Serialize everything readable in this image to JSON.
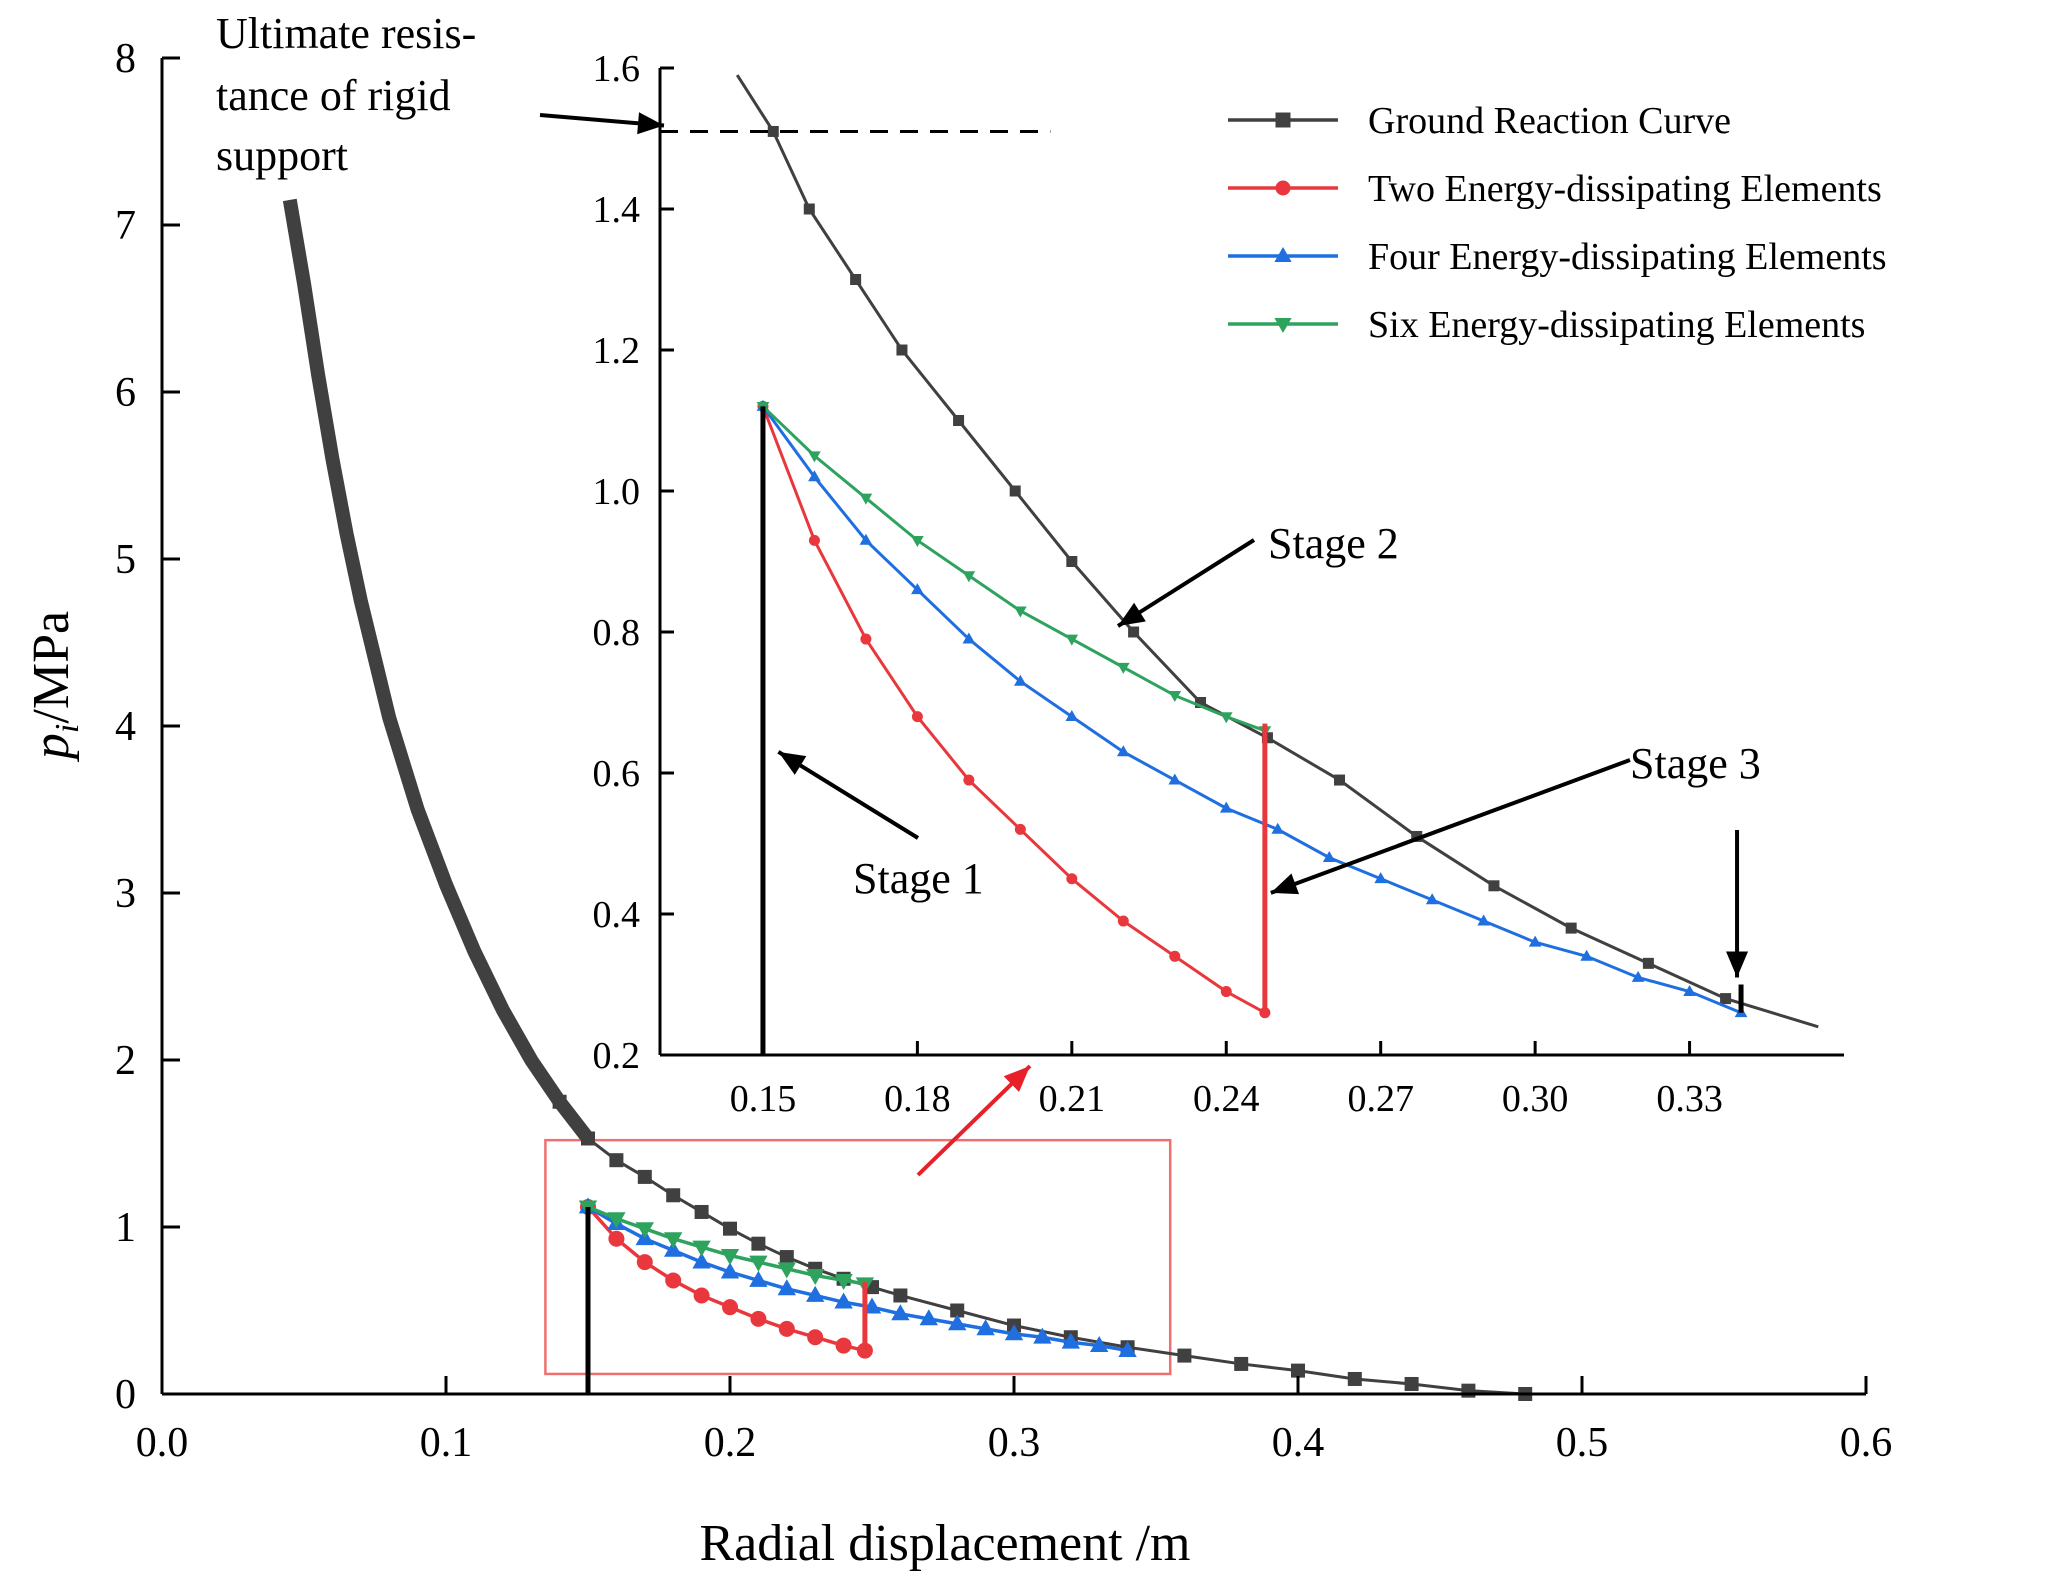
{
  "chart_data": [
    {
      "id": "main",
      "type": "line",
      "xlabel": "Radial displacement /m",
      "ylabel": "p",
      "ylabel_sub": "i",
      "ylabel_unit": "/MPa",
      "xlim": [
        0,
        0.6
      ],
      "ylim": [
        0,
        8
      ],
      "xticks": [
        "0.0",
        "0.1",
        "0.2",
        "0.3",
        "0.4",
        "0.5",
        "0.6"
      ],
      "yticks": [
        "0",
        "1",
        "2",
        "3",
        "4",
        "5",
        "6",
        "7",
        "8"
      ],
      "grid": false,
      "series": [
        {
          "name": "Ground Reaction Curve",
          "color": "#404040",
          "marker": "square",
          "x": [
            0.045,
            0.05,
            0.055,
            0.06,
            0.065,
            0.07,
            0.075,
            0.08,
            0.09,
            0.1,
            0.11,
            0.12,
            0.13,
            0.14,
            0.15,
            0.16,
            0.17,
            0.18,
            0.19,
            0.2,
            0.21,
            0.22,
            0.23,
            0.24,
            0.25,
            0.26,
            0.28,
            0.3,
            0.32,
            0.34,
            0.36,
            0.38,
            0.4,
            0.42,
            0.44,
            0.46,
            0.48
          ],
          "y": [
            7.15,
            6.65,
            6.1,
            5.6,
            5.15,
            4.75,
            4.4,
            4.05,
            3.5,
            3.05,
            2.65,
            2.3,
            2.0,
            1.75,
            1.53,
            1.4,
            1.3,
            1.19,
            1.09,
            0.99,
            0.9,
            0.82,
            0.75,
            0.69,
            0.64,
            0.59,
            0.5,
            0.41,
            0.34,
            0.28,
            0.23,
            0.18,
            0.14,
            0.09,
            0.06,
            0.02,
            0.0
          ]
        },
        {
          "name": "Two Energy-dissipating Elements",
          "color": "#e8383d",
          "marker": "circle",
          "x": [
            0.15,
            0.16,
            0.17,
            0.18,
            0.19,
            0.2,
            0.21,
            0.22,
            0.23,
            0.24,
            0.2475
          ],
          "y": [
            1.12,
            0.93,
            0.79,
            0.68,
            0.59,
            0.52,
            0.45,
            0.39,
            0.34,
            0.29,
            0.26
          ]
        },
        {
          "name": "Four Energy-dissipating Elements",
          "color": "#1f6fe0",
          "marker": "triangle-up",
          "x": [
            0.15,
            0.16,
            0.17,
            0.18,
            0.19,
            0.2,
            0.21,
            0.22,
            0.23,
            0.24,
            0.25,
            0.26,
            0.27,
            0.28,
            0.29,
            0.3,
            0.31,
            0.32,
            0.33,
            0.34
          ],
          "y": [
            1.12,
            1.02,
            0.93,
            0.86,
            0.79,
            0.73,
            0.68,
            0.63,
            0.59,
            0.55,
            0.52,
            0.48,
            0.45,
            0.42,
            0.39,
            0.36,
            0.34,
            0.31,
            0.29,
            0.26
          ]
        },
        {
          "name": "Six Energy-dissipating Elements",
          "color": "#2ea35e",
          "marker": "triangle-down",
          "x": [
            0.15,
            0.16,
            0.17,
            0.18,
            0.19,
            0.2,
            0.21,
            0.22,
            0.23,
            0.24,
            0.2475
          ],
          "y": [
            1.12,
            1.05,
            0.99,
            0.93,
            0.88,
            0.83,
            0.79,
            0.75,
            0.71,
            0.68,
            0.66
          ]
        }
      ],
      "segments": [
        {
          "name": "stage1-vertical",
          "color": "#000000",
          "x": [
            0.15,
            0.15
          ],
          "y": [
            0,
            1.12
          ]
        },
        {
          "name": "stage3-drop",
          "color": "#e8383d",
          "x": [
            0.2475,
            0.2475
          ],
          "y": [
            0.67,
            0.26
          ]
        }
      ],
      "zoom_box": {
        "x": [
          0.135,
          0.355
        ],
        "y": [
          0.12,
          1.52
        ],
        "color": "#f07070"
      }
    },
    {
      "id": "inset",
      "type": "line",
      "xlim": [
        0.13,
        0.36
      ],
      "ylim": [
        0.2,
        1.6
      ],
      "xticks": [
        "0.15",
        "0.18",
        "0.21",
        "0.24",
        "0.27",
        "0.30",
        "0.33"
      ],
      "yticks": [
        "0.2",
        "0.4",
        "0.6",
        "0.8",
        "1.0",
        "1.2",
        "1.4",
        "1.6"
      ],
      "grid": false,
      "series": [
        {
          "name": "Ground Reaction Curve",
          "color": "#404040",
          "marker": "square",
          "x": [
            0.145,
            0.152,
            0.159,
            0.168,
            0.177,
            0.188,
            0.199,
            0.21,
            0.222,
            0.235,
            0.248,
            0.262,
            0.277,
            0.292,
            0.307,
            0.322,
            0.337,
            0.355
          ],
          "y": [
            1.59,
            1.51,
            1.4,
            1.3,
            1.2,
            1.1,
            1.0,
            0.9,
            0.8,
            0.7,
            0.65,
            0.59,
            0.51,
            0.44,
            0.38,
            0.33,
            0.28,
            0.24
          ]
        },
        {
          "name": "Two Energy-dissipating Elements",
          "color": "#e8383d",
          "marker": "circle",
          "x": [
            0.15,
            0.16,
            0.17,
            0.18,
            0.19,
            0.2,
            0.21,
            0.22,
            0.23,
            0.24,
            0.2475
          ],
          "y": [
            1.12,
            0.93,
            0.79,
            0.68,
            0.59,
            0.52,
            0.45,
            0.39,
            0.34,
            0.29,
            0.26
          ]
        },
        {
          "name": "Four Energy-dissipating Elements",
          "color": "#1f6fe0",
          "marker": "triangle-up",
          "x": [
            0.15,
            0.16,
            0.17,
            0.18,
            0.19,
            0.2,
            0.21,
            0.22,
            0.23,
            0.24,
            0.25,
            0.26,
            0.27,
            0.28,
            0.29,
            0.3,
            0.31,
            0.32,
            0.33,
            0.34
          ],
          "y": [
            1.12,
            1.02,
            0.93,
            0.86,
            0.79,
            0.73,
            0.68,
            0.63,
            0.59,
            0.55,
            0.52,
            0.48,
            0.45,
            0.42,
            0.39,
            0.36,
            0.34,
            0.31,
            0.29,
            0.26
          ]
        },
        {
          "name": "Six Energy-dissipating Elements",
          "color": "#2ea35e",
          "marker": "triangle-down",
          "x": [
            0.15,
            0.16,
            0.17,
            0.18,
            0.19,
            0.2,
            0.21,
            0.22,
            0.23,
            0.24,
            0.2475
          ],
          "y": [
            1.12,
            1.05,
            0.99,
            0.93,
            0.88,
            0.83,
            0.79,
            0.75,
            0.71,
            0.68,
            0.66
          ]
        }
      ],
      "segments": [
        {
          "name": "stage1-vertical",
          "color": "#000000",
          "x": [
            0.15,
            0.15
          ],
          "y": [
            0.2,
            1.12
          ]
        },
        {
          "name": "stage3-drop",
          "color": "#e8383d",
          "x": [
            0.2475,
            0.2475
          ],
          "y": [
            0.67,
            0.26
          ]
        },
        {
          "name": "end-tick",
          "color": "#000000",
          "x": [
            0.34,
            0.34
          ],
          "y": [
            0.26,
            0.3
          ]
        }
      ],
      "reference_line": {
        "y": 1.51,
        "x": [
          0.13,
          0.2
        ]
      },
      "annotations": {
        "rigid_support": [
          "Ultimate resis-",
          "tance of rigid",
          "support"
        ],
        "stage1": "Stage 1",
        "stage2": "Stage 2",
        "stage3": "Stage 3"
      }
    }
  ],
  "legend": {
    "position": "top-right",
    "entries": [
      {
        "label": "Ground Reaction Curve",
        "color": "#404040",
        "marker": "square"
      },
      {
        "label": "Two Energy-dissipating Elements",
        "color": "#e8383d",
        "marker": "circle"
      },
      {
        "label": "Four Energy-dissipating Elements",
        "color": "#1f6fe0",
        "marker": "triangle-up"
      },
      {
        "label": "Six Energy-dissipating Elements",
        "color": "#2ea35e",
        "marker": "triangle-down"
      }
    ]
  }
}
